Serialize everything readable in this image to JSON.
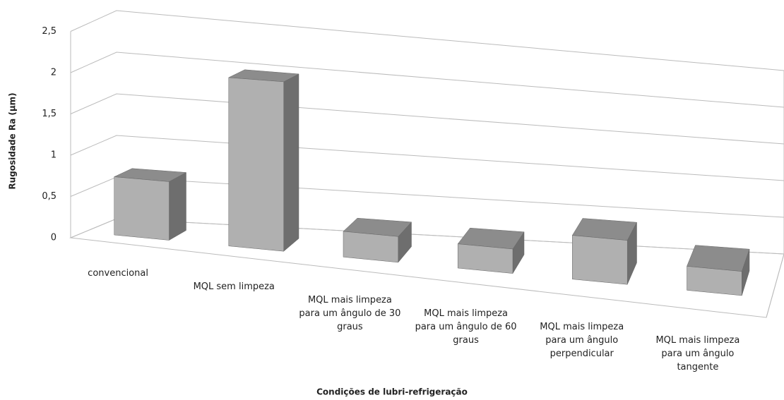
{
  "chart_data": {
    "type": "bar3d",
    "y_label": "Rugosidade Ra (µm)",
    "x_label": "Condições de lubri-refrigeração",
    "categories": [
      "convencional",
      "MQL sem limpeza",
      "MQL mais limpeza para um ângulo de 30 graus",
      "MQL mais limpeza para um ângulo de 60 graus",
      "MQL mais limpeza para um ângulo perpendicular",
      "MQL mais limpeza para um ângulo tangente"
    ],
    "values": [
      0.7,
      2.0,
      0.3,
      0.28,
      0.5,
      0.27
    ],
    "color": "#b0b0b0",
    "ylim": [
      0,
      2.5
    ],
    "yticks": [
      0,
      {
        "value": 0.5,
        "label": "0,5"
      },
      1,
      {
        "value": 1.5,
        "label": "1,5"
      },
      2,
      {
        "value": 2.5,
        "label": "2,5"
      }
    ],
    "grid": true
  }
}
